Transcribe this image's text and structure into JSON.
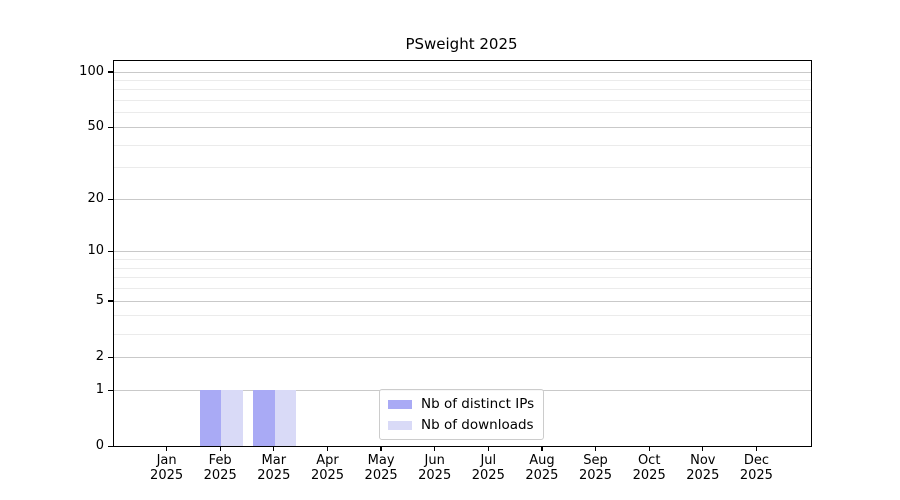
{
  "title": "PSweight 2025",
  "chart_data": {
    "type": "bar",
    "title": "PSweight 2025",
    "categories": [
      "Jan 2025",
      "Feb 2025",
      "Mar 2025",
      "Apr 2025",
      "May 2025",
      "Jun 2025",
      "Jul 2025",
      "Aug 2025",
      "Sep 2025",
      "Oct 2025",
      "Nov 2025",
      "Dec 2025"
    ],
    "series": [
      {
        "name": "Nb of distinct IPs",
        "color": "#a9aaf5",
        "values": [
          0,
          1,
          1,
          0,
          0,
          0,
          0,
          0,
          0,
          0,
          0,
          0
        ]
      },
      {
        "name": "Nb of downloads",
        "color": "#d9daf7",
        "values": [
          0,
          1,
          1,
          0,
          0,
          0,
          0,
          0,
          0,
          0,
          0,
          0
        ]
      }
    ],
    "xlabel": "",
    "ylabel": "",
    "yscale": "log1p",
    "ylim": [
      0,
      114
    ],
    "y_major_ticks": [
      0,
      1,
      2,
      5,
      10,
      20,
      50,
      100
    ],
    "y_minor_ticks": [
      3,
      4,
      6,
      7,
      8,
      9,
      30,
      40,
      60,
      70,
      80,
      90
    ],
    "grid": "horizontal",
    "legend_position": "bottom-center",
    "colors": {
      "grid_major": "#c9c9c9",
      "grid_minor": "#ebebeb",
      "axis": "#000000",
      "text": "#000000",
      "background": "#ffffff"
    }
  }
}
